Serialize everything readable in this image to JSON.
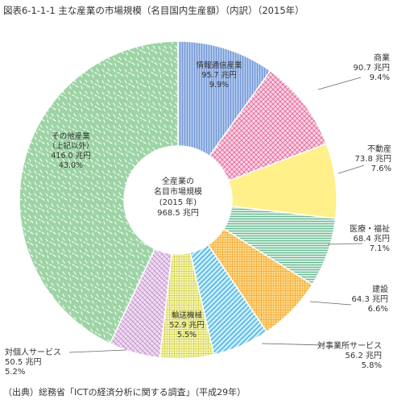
{
  "title": "図表6-1-1-1  主な産業の市場規模（名目国内生産額）（内訳）（2015年）",
  "source": "（出典）総務省「ICTの経済分析に関する調査」（平成29年）",
  "chart_data": {
    "type": "pie",
    "subtype": "donut",
    "center_label": [
      "全産業の",
      "名目市場規模",
      "(2015 年)",
      "968.5 兆円"
    ],
    "total": 968.5,
    "unit": "兆円",
    "start": "12 o'clock",
    "direction": "clockwise",
    "slices": [
      {
        "name": "情報通信産業",
        "value": 95.7,
        "value_text": "95.7 兆円",
        "percent": 9.9,
        "percent_text": "9.9%",
        "color": "#a9c4ec",
        "pattern": "vlines",
        "pattern_color": "#6f8fd0",
        "label_position": "inside"
      },
      {
        "name": "商業",
        "value": 90.7,
        "value_text": "90.7 兆円",
        "percent": 9.4,
        "percent_text": "9.4%",
        "color": "#fbd3e3",
        "pattern": "crosshatch",
        "pattern_color": "#e06a9a",
        "label_position": "outside"
      },
      {
        "name": "不動産",
        "value": 73.8,
        "value_text": "73.8 兆円",
        "percent": 7.6,
        "percent_text": "7.6%",
        "color": "#fff08a",
        "pattern": "none",
        "pattern_color": "#fff08a",
        "label_position": "outside"
      },
      {
        "name": "医療・福祉",
        "value": 68.4,
        "value_text": "68.4 兆円",
        "percent": 7.1,
        "percent_text": "7.1%",
        "color": "#cdeadc",
        "pattern": "hlines",
        "pattern_color": "#5fb48a",
        "label_position": "outside"
      },
      {
        "name": "建設",
        "value": 64.3,
        "value_text": "64.3 兆円",
        "percent": 6.6,
        "percent_text": "6.6%",
        "color": "#fdd985",
        "pattern": "grid",
        "pattern_color": "#f3a93a",
        "label_position": "outside"
      },
      {
        "name": "対事業所サービス",
        "value": 56.2,
        "value_text": "56.2 兆円",
        "percent": 5.8,
        "percent_text": "5.8%",
        "color": "#c6ecfa",
        "pattern": "diag",
        "pattern_color": "#3fa9dc",
        "label_position": "outside"
      },
      {
        "name": "輸送機械",
        "value": 52.9,
        "value_text": "52.9 兆円",
        "percent": 5.5,
        "percent_text": "5.5%",
        "color": "#f6f6b8",
        "pattern": "grid",
        "pattern_color": "#d2d24e",
        "label_position": "inside"
      },
      {
        "name": "対個人サービス",
        "value": 50.5,
        "value_text": "50.5 兆円",
        "percent": 5.2,
        "percent_text": "5.2%",
        "color": "#ecdcf0",
        "pattern": "diag2",
        "pattern_color": "#c284c9",
        "label_position": "outside"
      },
      {
        "name": "その他産業",
        "sub": "（上記以外）",
        "value": 416.0,
        "value_text": "416.0 兆円",
        "percent": 43.0,
        "percent_text": "43.0%",
        "color": "#9ed4a5",
        "pattern": "dashes",
        "pattern_color": "#ffffff",
        "label_position": "inside"
      }
    ]
  }
}
